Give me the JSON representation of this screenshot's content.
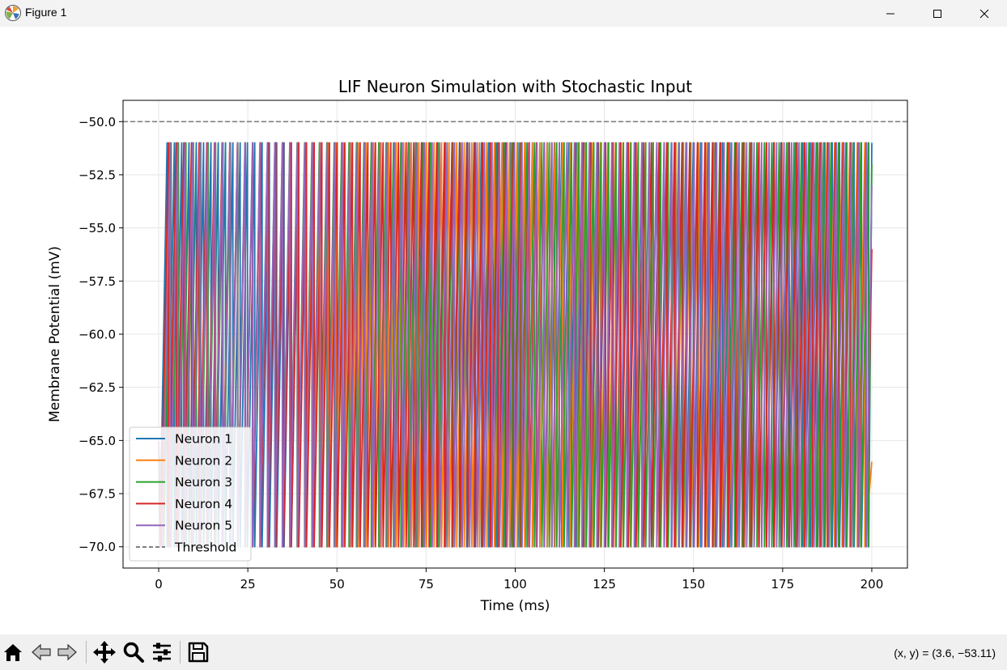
{
  "window": {
    "title": "Figure 1",
    "app_icon": "matplotlib-logo-icon",
    "controls": [
      "minimize-icon",
      "maximize-icon",
      "close-icon"
    ]
  },
  "toolbar": {
    "buttons": [
      "home-icon",
      "back-arrow-icon",
      "forward-arrow-icon",
      "pan-icon",
      "zoom-icon",
      "configure-subplots-icon",
      "save-icon"
    ],
    "coords": "(x, y) = (3.6, −53.11)"
  },
  "chart_data": {
    "type": "line",
    "title": "LIF Neuron Simulation with Stochastic Input",
    "xlabel": "Time (ms)",
    "ylabel": "Membrane Potential (mV)",
    "xlim": [
      -10,
      210
    ],
    "ylim": [
      -71,
      -49
    ],
    "xticks": [
      0,
      25,
      50,
      75,
      100,
      125,
      150,
      175,
      200
    ],
    "xtick_labels": [
      "0",
      "25",
      "50",
      "75",
      "100",
      "125",
      "150",
      "175",
      "200"
    ],
    "yticks": [
      -50,
      -52.5,
      -55,
      -57.5,
      -60,
      -62.5,
      -65,
      -67.5,
      -70
    ],
    "ytick_labels": [
      "−50.0",
      "−52.5",
      "−55.0",
      "−57.5",
      "−60.0",
      "−62.5",
      "−65.0",
      "−67.5",
      "−70.0"
    ],
    "grid": true,
    "legend_position": "lower-left",
    "series": [
      {
        "name": "Neuron 1",
        "color": "#1f77b4",
        "spike_period_ms": 2.05,
        "phase_ms": 0.3,
        "v_reset": -70,
        "v_peak": -51,
        "end_value": -51
      },
      {
        "name": "Neuron 2",
        "color": "#ff7f0e",
        "spike_period_ms": 2.12,
        "phase_ms": 0.9,
        "v_reset": -70,
        "v_peak": -51,
        "end_value": -66
      },
      {
        "name": "Neuron 3",
        "color": "#2ca02c",
        "spike_period_ms": 2.08,
        "phase_ms": 1.4,
        "v_reset": -70,
        "v_peak": -51,
        "end_value": -52
      },
      {
        "name": "Neuron 4",
        "color": "#d62728",
        "spike_period_ms": 2.15,
        "phase_ms": 0.6,
        "v_reset": -70,
        "v_peak": -51,
        "end_value": -56
      },
      {
        "name": "Neuron 5",
        "color": "#9467bd",
        "spike_period_ms": 2.1,
        "phase_ms": 1.1,
        "v_reset": -70,
        "v_peak": -51,
        "end_value": -53
      }
    ],
    "threshold": {
      "name": "Threshold",
      "value": -50,
      "color": "#808080",
      "style": "dashed"
    }
  }
}
